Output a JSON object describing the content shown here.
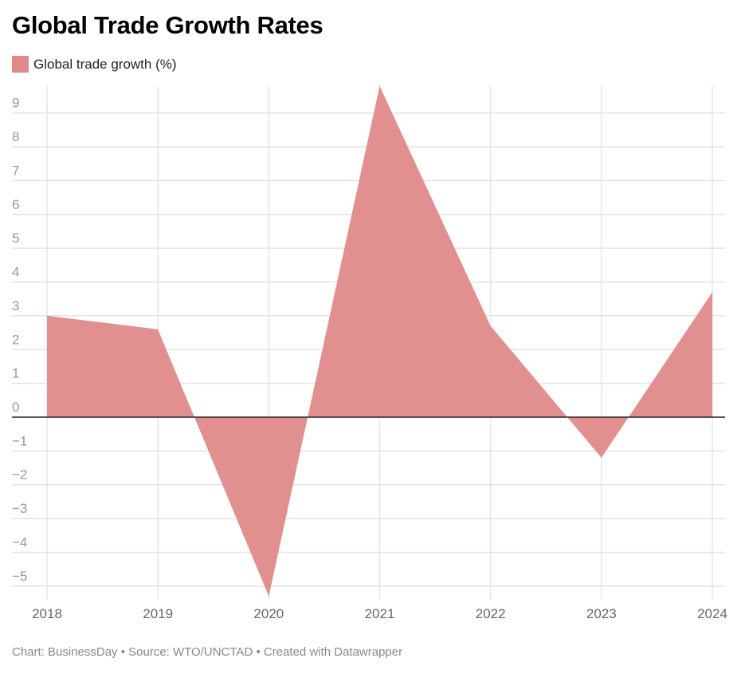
{
  "chart_data": {
    "type": "area",
    "title": "Global Trade Growth Rates",
    "legend": {
      "position": "top-left",
      "entries": [
        "Global trade growth (%)"
      ]
    },
    "series": [
      {
        "name": "Global trade growth (%)",
        "color": "#e08a89",
        "values": [
          3.0,
          2.6,
          -5.3,
          9.8,
          2.7,
          -1.2,
          3.7
        ]
      }
    ],
    "categories": [
      "2018",
      "2019",
      "2020",
      "2021",
      "2022",
      "2023",
      "2024"
    ],
    "yticks": [
      "9",
      "8",
      "7",
      "6",
      "5",
      "4",
      "3",
      "2",
      "1",
      "0",
      "-1",
      "-2",
      "-3",
      "-4",
      "-5"
    ],
    "ylim": [
      -5.3,
      9.8
    ],
    "grid": true,
    "footer": "Chart: BusinessDay • Source: WTO/UNCTAD • Created with Datawrapper"
  }
}
